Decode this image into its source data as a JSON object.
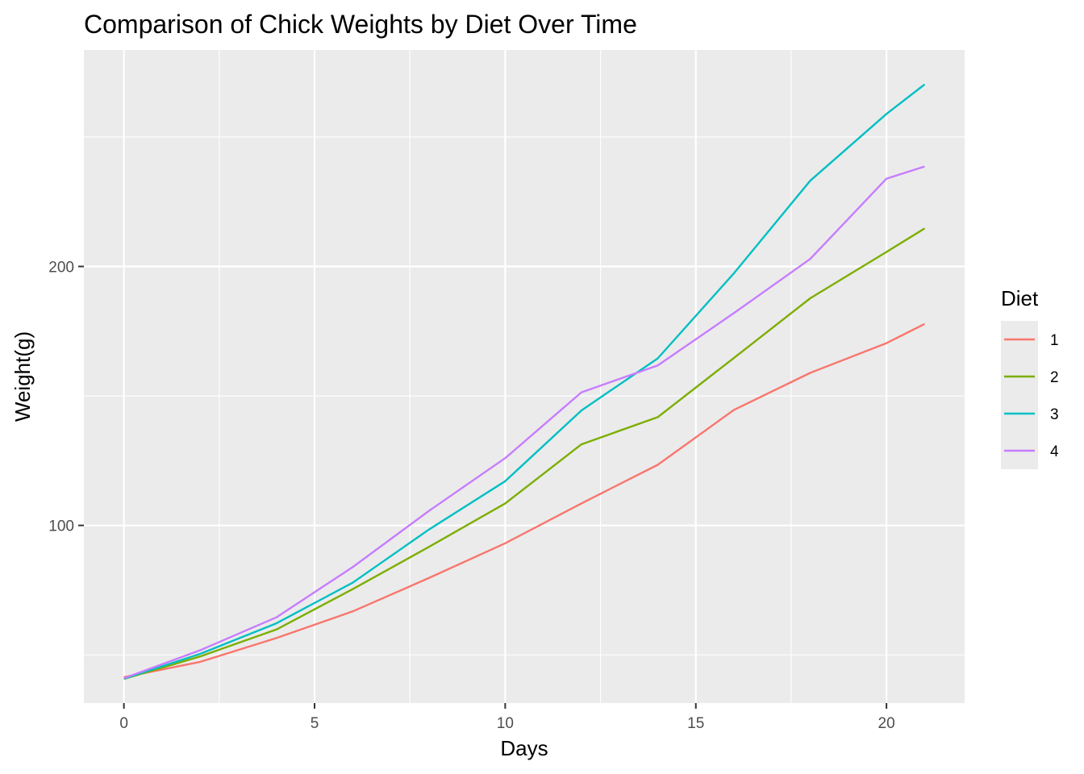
{
  "chart_data": {
    "type": "line",
    "title": "Comparison of Chick Weights by Diet Over Time",
    "xlabel": "Days",
    "ylabel": "Weight(g)",
    "xlim": [
      -1.05,
      22.05
    ],
    "ylim": [
      31.4,
      283.6
    ],
    "x_ticks": [
      0,
      5,
      10,
      15,
      20
    ],
    "y_ticks": [
      100,
      200
    ],
    "grid": true,
    "legend": {
      "title": "Diet",
      "position": "right"
    },
    "x": [
      0,
      2,
      4,
      6,
      8,
      10,
      12,
      14,
      16,
      18,
      20,
      21
    ],
    "series": [
      {
        "name": "1",
        "color": "#F8766D",
        "values": [
          41.4,
          47.3,
          56.5,
          66.8,
          79.7,
          93.1,
          108.5,
          123.4,
          144.6,
          158.9,
          170.4,
          177.8
        ]
      },
      {
        "name": "2",
        "color": "#7CAE00",
        "values": [
          40.7,
          49.4,
          59.8,
          75.4,
          91.7,
          108.5,
          131.3,
          141.8,
          164.7,
          187.7,
          205.6,
          214.7
        ]
      },
      {
        "name": "3",
        "color": "#00BFC4",
        "values": [
          40.8,
          50.4,
          62.2,
          77.9,
          98.4,
          117.1,
          144.4,
          164.5,
          197.4,
          233.1,
          258.9,
          270.3
        ]
      },
      {
        "name": "4",
        "color": "#C77CFF",
        "values": [
          41.0,
          51.8,
          64.5,
          83.9,
          105.6,
          126.0,
          151.4,
          161.8,
          182.0,
          202.9,
          233.9,
          238.6
        ]
      }
    ]
  }
}
